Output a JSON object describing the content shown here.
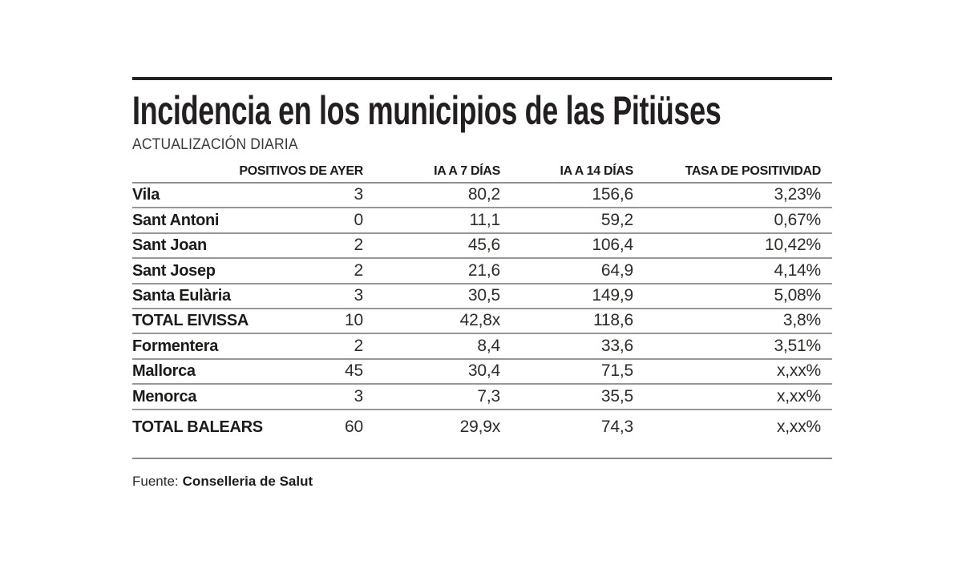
{
  "chart_data": {
    "type": "table",
    "title": "Incidencia en los municipios de las Pitiüses",
    "subtitle": "ACTUALIZACIÓN DIARIA",
    "columns": [
      "POSITIVOS DE AYER",
      "IA A 7 DÍAS",
      "IA A 14 DÍAS",
      "TASA DE POSITIVIDAD"
    ],
    "rows": [
      {
        "name": "Vila",
        "positivos": "3",
        "ia7": "80,2",
        "ia14": "156,6",
        "tasa": "3,23%"
      },
      {
        "name": "Sant Antoni",
        "positivos": "0",
        "ia7": "11,1",
        "ia14": "59,2",
        "tasa": "0,67%"
      },
      {
        "name": "Sant Joan",
        "positivos": "2",
        "ia7": "45,6",
        "ia14": "106,4",
        "tasa": "10,42%"
      },
      {
        "name": "Sant Josep",
        "positivos": "2",
        "ia7": "21,6",
        "ia14": "64,9",
        "tasa": "4,14%"
      },
      {
        "name": "Santa Eulària",
        "positivos": "3",
        "ia7": "30,5",
        "ia14": "149,9",
        "tasa": "5,08%"
      },
      {
        "name": "TOTAL EIVISSA",
        "positivos": "10",
        "ia7": "42,8x",
        "ia14": "118,6",
        "tasa": "3,8%"
      },
      {
        "name": "Formentera",
        "positivos": "2",
        "ia7": "8,4",
        "ia14": "33,6",
        "tasa": "3,51%"
      },
      {
        "name": "Mallorca",
        "positivos": "45",
        "ia7": "30,4",
        "ia14": "71,5",
        "tasa": "x,xx%"
      },
      {
        "name": "Menorca",
        "positivos": "3",
        "ia7": "7,3",
        "ia14": "35,5",
        "tasa": "x,xx%"
      },
      {
        "name": "TOTAL BALEARS",
        "positivos": "60",
        "ia7": "29,9x",
        "ia14": "74,3",
        "tasa": "x,xx%"
      }
    ],
    "layout": {
      "grid": "horizontal-row-rules",
      "legend": "none",
      "value_alignment": "right"
    }
  },
  "footer": {
    "source_label": "Fuente:",
    "source_value": "Conselleria de Salut"
  },
  "colors": {
    "text_dark": "#231f20",
    "value_text": "#2e2b29",
    "rule_dark": "#262223",
    "rule_gray": "#8f8f8f",
    "background": "#ffffff"
  }
}
